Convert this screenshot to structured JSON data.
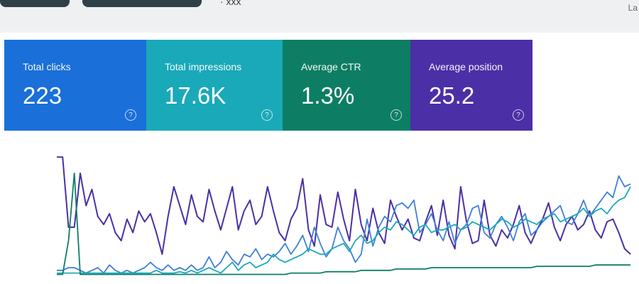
{
  "top": {
    "center_text": "· xxx",
    "corner_text": "La"
  },
  "metrics": [
    {
      "label": "Total clicks",
      "value": "223",
      "help_icon": "?",
      "color": "#1a6fd9"
    },
    {
      "label": "Total impressions",
      "value": "17.6K",
      "help_icon": "?",
      "color": "#1aa9b8"
    },
    {
      "label": "Average CTR",
      "value": "1.3%",
      "help_icon": "?",
      "color": "#0d7e64"
    },
    {
      "label": "Average position",
      "value": "25.2",
      "help_icon": "?",
      "color": "#4b2fa6"
    }
  ],
  "chart_data": {
    "type": "line",
    "series": [
      {
        "color": "#4b2fa6",
        "values": [
          8,
          8,
          60,
          60,
          20,
          44,
          32,
          52,
          58,
          50,
          64,
          70,
          54,
          64,
          48,
          56,
          50,
          64,
          80,
          52,
          30,
          44,
          58,
          36,
          52,
          56,
          32,
          48,
          62,
          46,
          30,
          62,
          48,
          40,
          58,
          52,
          30,
          48,
          64,
          70,
          54,
          46,
          24,
          62,
          74,
          36,
          58,
          60,
          34,
          54,
          70,
          32,
          58,
          70,
          46,
          64,
          72,
          40,
          52,
          62,
          54,
          68,
          70,
          56,
          44,
          66,
          40,
          66,
          76,
          30,
          56,
          72,
          70,
          40,
          66,
          74,
          62,
          68,
          58,
          44,
          64,
          72,
          62,
          54,
          42,
          60,
          70,
          58,
          52,
          62,
          58,
          48,
          62,
          68,
          56,
          54,
          64,
          76,
          80
        ]
      },
      {
        "color": "#3f7fd6",
        "values": [
          92,
          92,
          90,
          90,
          92,
          94,
          92,
          90,
          94,
          88,
          92,
          94,
          92,
          94,
          92,
          90,
          86,
          90,
          92,
          88,
          92,
          90,
          92,
          88,
          92,
          90,
          82,
          90,
          86,
          78,
          84,
          88,
          80,
          82,
          76,
          84,
          80,
          82,
          78,
          72,
          80,
          74,
          66,
          78,
          60,
          72,
          82,
          76,
          60,
          70,
          76,
          86,
          80,
          54,
          74,
          60,
          52,
          56,
          44,
          42,
          46,
          40,
          64,
          58,
          50,
          62,
          70,
          56,
          72,
          62,
          58,
          46,
          44,
          64,
          68,
          58,
          52,
          60,
          70,
          56,
          50,
          66,
          62,
          56,
          52,
          48,
          44,
          56,
          58,
          50,
          40,
          52,
          46,
          40,
          34,
          38,
          22,
          30,
          28
        ]
      },
      {
        "color": "#1aa9b8",
        "values": [
          94,
          94,
          94,
          94,
          94,
          94,
          94,
          94,
          94,
          94,
          94,
          94,
          94,
          94,
          94,
          94,
          94,
          92,
          94,
          94,
          94,
          93,
          94,
          92,
          94,
          92,
          90,
          92,
          94,
          90,
          86,
          92,
          88,
          86,
          90,
          88,
          86,
          80,
          84,
          86,
          84,
          82,
          80,
          76,
          78,
          80,
          80,
          76,
          74,
          72,
          78,
          70,
          66,
          72,
          70,
          64,
          60,
          62,
          56,
          58,
          62,
          66,
          60,
          58,
          64,
          62,
          62,
          60,
          58,
          62,
          60,
          56,
          58,
          60,
          62,
          58,
          54,
          56,
          60,
          58,
          54,
          56,
          58,
          54,
          52,
          50,
          56,
          54,
          52,
          50,
          46,
          52,
          48,
          46,
          50,
          44,
          40,
          38,
          30
        ]
      },
      {
        "color": "#0d7e64",
        "values": [
          95,
          95,
          70,
          20,
          95,
          95,
          95,
          95,
          95,
          95,
          95,
          95,
          95,
          95,
          95,
          95,
          95,
          95,
          95,
          95,
          95,
          95,
          95,
          95,
          95,
          95,
          95,
          95,
          95,
          95,
          95,
          95,
          95,
          95,
          95,
          95,
          95,
          95,
          95,
          95,
          94,
          94,
          94,
          94,
          94,
          94,
          93,
          93,
          93,
          93,
          93,
          93,
          92,
          92,
          92,
          92,
          92,
          92,
          91,
          91,
          91,
          91,
          91,
          91,
          90,
          90,
          90,
          90,
          90,
          90,
          90,
          90,
          90,
          90,
          90,
          90,
          90,
          90,
          90,
          90,
          90,
          90,
          89,
          89,
          89,
          89,
          89,
          89,
          89,
          89,
          89,
          89,
          88,
          88,
          88,
          88,
          88,
          88,
          88
        ]
      }
    ]
  }
}
